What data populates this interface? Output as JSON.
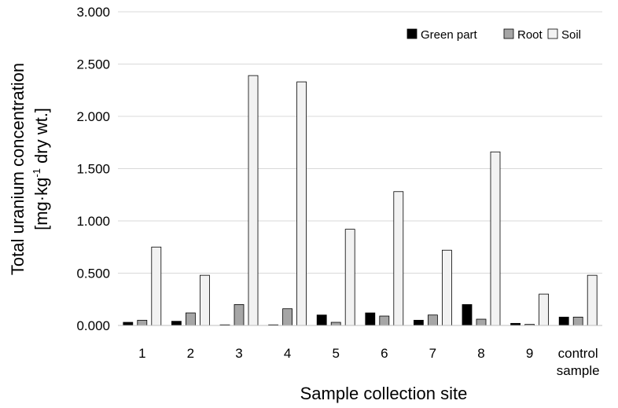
{
  "chart_data": {
    "type": "bar",
    "xlabel": "Sample collection site",
    "ylabel_line1": "Total uranium concentration",
    "ylabel_line2_prefix": "[mg·kg",
    "ylabel_line2_sup": "-1",
    "ylabel_line2_suffix": " dry wt.]",
    "ylim": [
      0,
      3.0
    ],
    "yticks": [
      "0.000",
      "0.500",
      "1.000",
      "1.500",
      "2.000",
      "2.500",
      "3.000"
    ],
    "ytick_values": [
      0,
      0.5,
      1.0,
      1.5,
      2.0,
      2.5,
      3.0
    ],
    "grid": true,
    "legend_position": "top-right",
    "categories": [
      [
        "1"
      ],
      [
        "2"
      ],
      [
        "3"
      ],
      [
        "4"
      ],
      [
        "5"
      ],
      [
        "6"
      ],
      [
        "7"
      ],
      [
        "8"
      ],
      [
        "9"
      ],
      [
        "control",
        "sample"
      ]
    ],
    "series": [
      {
        "name": "Green part",
        "color": "#000000",
        "values": [
          0.03,
          0.04,
          0.005,
          0.005,
          0.1,
          0.12,
          0.05,
          0.2,
          0.02,
          0.08
        ]
      },
      {
        "name": "Root",
        "color": "#a6a6a6",
        "values": [
          0.05,
          0.12,
          0.2,
          0.16,
          0.03,
          0.09,
          0.1,
          0.06,
          0.01,
          0.08
        ]
      },
      {
        "name": "Soil",
        "color": "#f2f2f2",
        "values": [
          0.75,
          0.48,
          2.39,
          2.33,
          0.92,
          1.28,
          0.72,
          1.66,
          0.3,
          0.48
        ]
      }
    ]
  }
}
